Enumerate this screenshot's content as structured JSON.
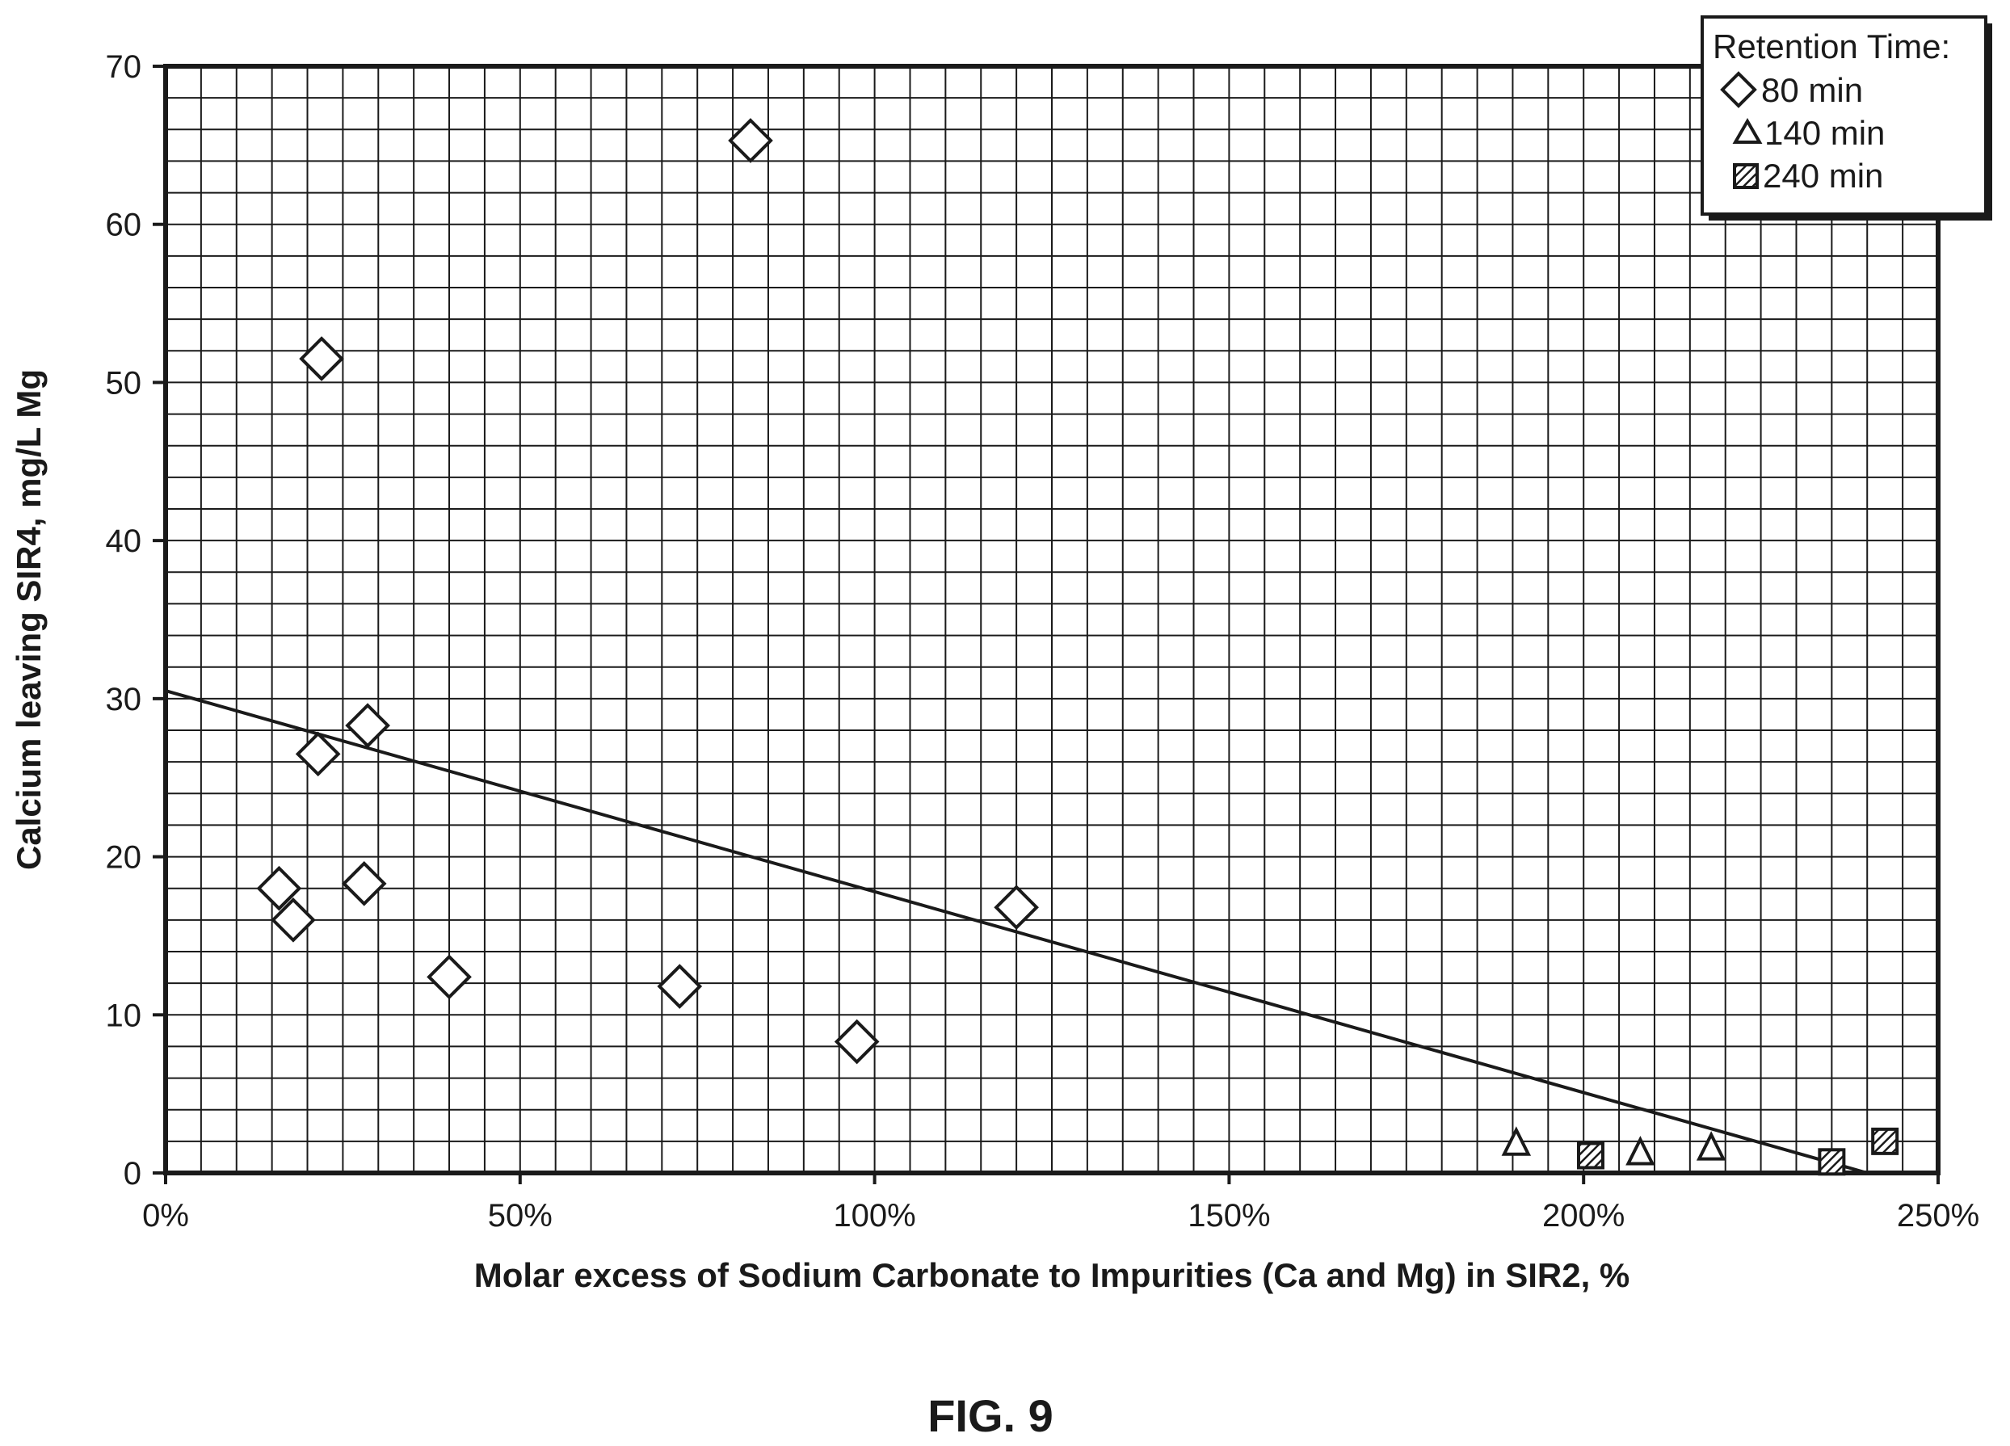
{
  "chart_data": {
    "type": "scatter",
    "title": "",
    "xlabel": "Molar excess of Sodium Carbonate to Impurities (Ca and Mg) in SIR2, %",
    "ylabel": "Calcium leaving SIR4, mg/L Mg",
    "xlim": [
      0,
      250
    ],
    "ylim": [
      0,
      70
    ],
    "x_ticks": [
      "0%",
      "50%",
      "100%",
      "150%",
      "200%",
      "250%"
    ],
    "y_ticks": [
      "0",
      "10",
      "20",
      "30",
      "40",
      "50",
      "60",
      "70"
    ],
    "grid": true,
    "legend": {
      "title": "Retention Time:",
      "placement": "top-right",
      "entries": [
        "80 min",
        "140 min",
        "240 min"
      ]
    },
    "series": [
      {
        "name": "80 min",
        "marker": "diamond",
        "points": [
          {
            "x": 16,
            "y": 18.0
          },
          {
            "x": 18,
            "y": 16.0
          },
          {
            "x": 22,
            "y": 51.5
          },
          {
            "x": 21.5,
            "y": 26.5
          },
          {
            "x": 28.5,
            "y": 28.3
          },
          {
            "x": 28,
            "y": 18.3
          },
          {
            "x": 40,
            "y": 12.4
          },
          {
            "x": 72.5,
            "y": 11.8
          },
          {
            "x": 82.5,
            "y": 65.3
          },
          {
            "x": 97.5,
            "y": 8.3
          },
          {
            "x": 120,
            "y": 16.8
          }
        ]
      },
      {
        "name": "140 min",
        "marker": "triangle",
        "points": [
          {
            "x": 190.5,
            "y": 1.8
          },
          {
            "x": 208,
            "y": 1.2
          },
          {
            "x": 218,
            "y": 1.5
          }
        ]
      },
      {
        "name": "240 min",
        "marker": "hatched-square",
        "points": [
          {
            "x": 201,
            "y": 1.1
          },
          {
            "x": 235,
            "y": 0.7
          },
          {
            "x": 242.5,
            "y": 2.0
          }
        ]
      }
    ],
    "trendline": {
      "x": [
        0,
        240
      ],
      "y": [
        30.5,
        0
      ]
    }
  },
  "caption": "FIG. 9",
  "colors": {
    "ink": "#1a1a1a",
    "background": "#ffffff"
  }
}
